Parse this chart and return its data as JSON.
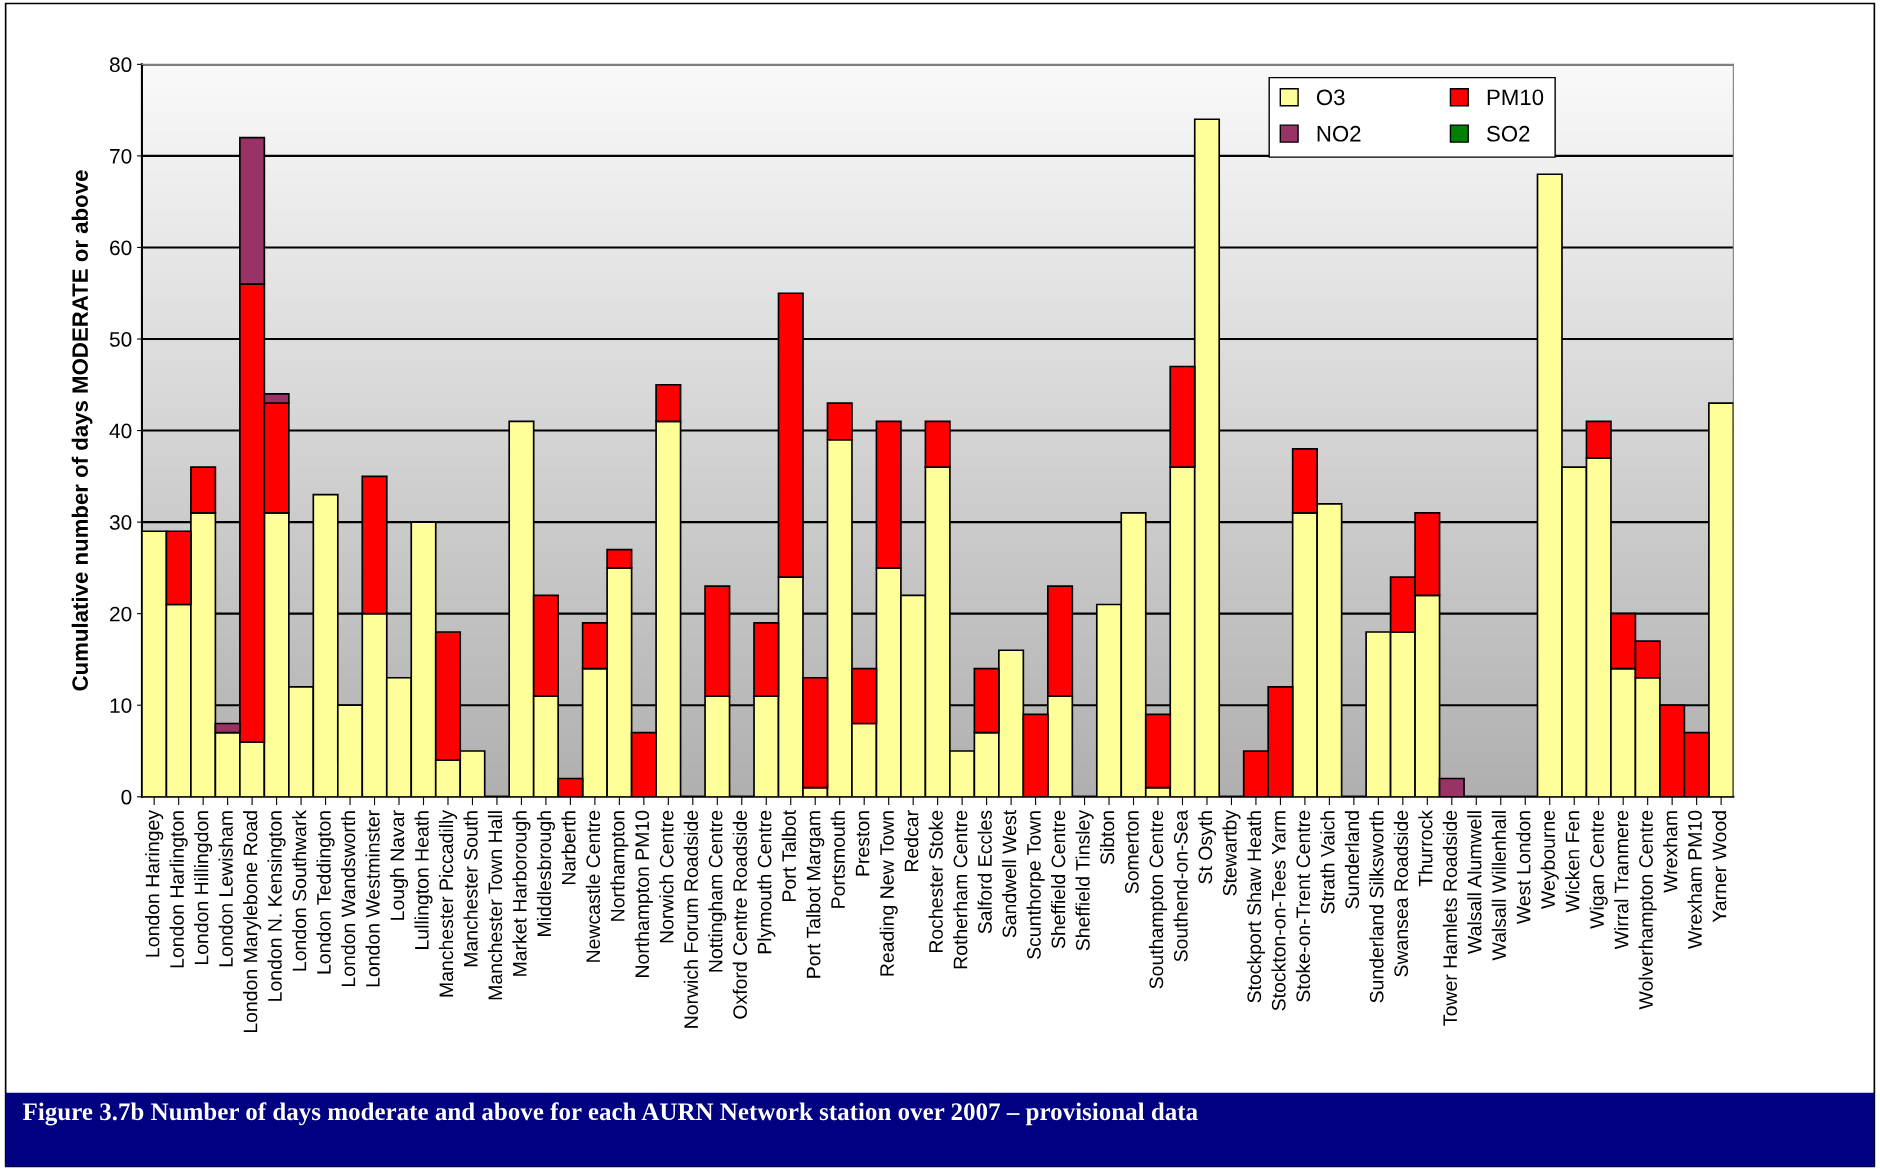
{
  "chart_data": {
    "type": "bar",
    "stacked": true,
    "title": "Figure 3.7b Number of days moderate and above for each AURN Network station over 2007 – provisional data",
    "ylabel": "Cumulative number of days MODERATE or above",
    "categories": [
      "London Haringey",
      "London Harlington",
      "London Hillingdon",
      "London Lewisham",
      "London Marylebone Road",
      "London N. Kensington",
      "London Southwark",
      "London Teddington",
      "London Wandsworth",
      "London Westminster",
      "Lough Navar",
      "Lullington Heath",
      "Manchester Piccadilly",
      "Manchester South",
      "Manchester Town Hall",
      "Market Harborough",
      "Middlesbrough",
      "Narberth",
      "Newcastle Centre",
      "Northampton",
      "Northampton PM10",
      "Norwich Centre",
      "Norwich Forum Roadside",
      "Nottingham Centre",
      "Oxford Centre Roadside",
      "Plymouth Centre",
      "Port Talbot",
      "Port Talbot Margam",
      "Portsmouth",
      "Preston",
      "Reading New Town",
      "Redcar",
      "Rochester Stoke",
      "Rotherham Centre",
      "Salford Eccles",
      "Sandwell West",
      "Scunthorpe Town",
      "Sheffield Centre",
      "Sheffield Tinsley",
      "Sibton",
      "Somerton",
      "Southampton Centre",
      "Southend-on-Sea",
      "St Osyth",
      "Stewartby",
      "Stockport Shaw Heath",
      "Stockton-on-Tees Yarm",
      "Stoke-on-Trent Centre",
      "Strath Vaich",
      "Sunderland",
      "Sunderland Silksworth",
      "Swansea Roadside",
      "Thurrock",
      "Tower Hamlets Roadside",
      "Walsall Alumwell",
      "Walsall Willenhall",
      "West London",
      "Weybourne",
      "Wicken Fen",
      "Wigan Centre",
      "Wirral Tranmere",
      "Wolverhampton Centre",
      "Wrexham",
      "Wrexham PM10",
      "Yarner Wood"
    ],
    "series": [
      {
        "name": "O3",
        "color": "#ffff99",
        "values": [
          29,
          21,
          31,
          7,
          6,
          31,
          12,
          33,
          10,
          20,
          13,
          30,
          4,
          5,
          0,
          41,
          11,
          0,
          14,
          25,
          0,
          41,
          0,
          11,
          0,
          11,
          24,
          1,
          39,
          8,
          25,
          22,
          36,
          5,
          7,
          16,
          0,
          11,
          0,
          21,
          31,
          1,
          36,
          74,
          0,
          0,
          0,
          31,
          32,
          0,
          18,
          18,
          22,
          0,
          0,
          0,
          0,
          68,
          36,
          37,
          14,
          13,
          0,
          0,
          43
        ]
      },
      {
        "name": "PM10",
        "color": "#ff0000",
        "values": [
          0,
          8,
          5,
          0,
          50,
          12,
          0,
          0,
          0,
          15,
          0,
          0,
          14,
          0,
          0,
          0,
          11,
          2,
          5,
          2,
          7,
          4,
          0,
          12,
          0,
          8,
          31,
          12,
          4,
          6,
          16,
          0,
          5,
          0,
          7,
          0,
          9,
          12,
          0,
          0,
          0,
          8,
          11,
          0,
          0,
          5,
          12,
          7,
          0,
          0,
          0,
          6,
          9,
          0,
          0,
          0,
          0,
          0,
          0,
          4,
          6,
          4,
          10,
          7,
          0
        ]
      },
      {
        "name": "NO2",
        "color": "#993366",
        "values": [
          0,
          0,
          0,
          1,
          16,
          1,
          0,
          0,
          0,
          0,
          0,
          0,
          0,
          0,
          0,
          0,
          0,
          0,
          0,
          0,
          0,
          0,
          0,
          0,
          0,
          0,
          0,
          0,
          0,
          0,
          0,
          0,
          0,
          0,
          0,
          0,
          0,
          0,
          0,
          0,
          0,
          0,
          0,
          0,
          0,
          0,
          0,
          0,
          0,
          0,
          0,
          0,
          0,
          2,
          0,
          0,
          0,
          0,
          0,
          0,
          0,
          0,
          0,
          0,
          0
        ]
      },
      {
        "name": "SO2",
        "color": "#008000",
        "values": [
          0,
          0,
          0,
          0,
          0,
          0,
          0,
          0,
          0,
          0,
          0,
          0,
          0,
          0,
          0,
          0,
          0,
          0,
          0,
          0,
          0,
          0,
          0,
          0,
          0,
          0,
          0,
          0,
          0,
          0,
          0,
          0,
          0,
          0,
          0,
          0,
          0,
          0,
          0,
          0,
          0,
          0,
          0,
          0,
          0,
          0,
          0,
          0,
          0,
          0,
          0,
          0,
          0,
          0,
          0,
          0,
          0,
          0,
          0,
          0,
          0,
          0,
          0,
          0,
          0
        ]
      }
    ],
    "ylim": [
      0,
      80
    ],
    "yticks": [
      0,
      10,
      20,
      30,
      40,
      50,
      60,
      70,
      80
    ],
    "grid": "y",
    "legend": "top right"
  }
}
